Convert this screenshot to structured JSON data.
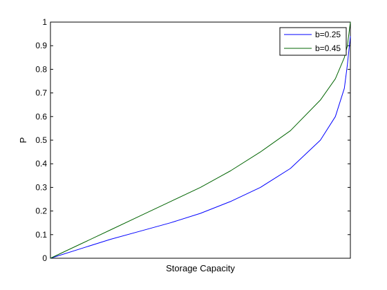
{
  "chart_data": {
    "type": "line",
    "xlabel": "Storage Capacity",
    "ylabel": "P",
    "xlim": [
      0,
      1
    ],
    "ylim": [
      0,
      1
    ],
    "x_ticks_shown": false,
    "y_ticks": [
      "0",
      "0.1",
      "0.2",
      "0.3",
      "0.4",
      "0.5",
      "0.6",
      "0.7",
      "0.8",
      "0.9",
      "1"
    ],
    "grid": false,
    "legend_position": "top-right",
    "series": [
      {
        "name": "b=0.25",
        "color": "#0000ff",
        "x": [
          0,
          0.1,
          0.2,
          0.3,
          0.4,
          0.5,
          0.6,
          0.7,
          0.8,
          0.9,
          0.95,
          0.98,
          0.99,
          1.0
        ],
        "y": [
          0,
          0.04,
          0.08,
          0.115,
          0.15,
          0.19,
          0.24,
          0.3,
          0.38,
          0.5,
          0.6,
          0.72,
          0.82,
          0.94
        ]
      },
      {
        "name": "b=0.45",
        "color": "#006400",
        "x": [
          0,
          0.1,
          0.2,
          0.3,
          0.4,
          0.5,
          0.6,
          0.7,
          0.8,
          0.9,
          0.95,
          0.98,
          0.99,
          1.0
        ],
        "y": [
          0,
          0.06,
          0.12,
          0.18,
          0.24,
          0.3,
          0.37,
          0.45,
          0.54,
          0.67,
          0.76,
          0.85,
          0.9,
          1.0
        ]
      }
    ]
  }
}
